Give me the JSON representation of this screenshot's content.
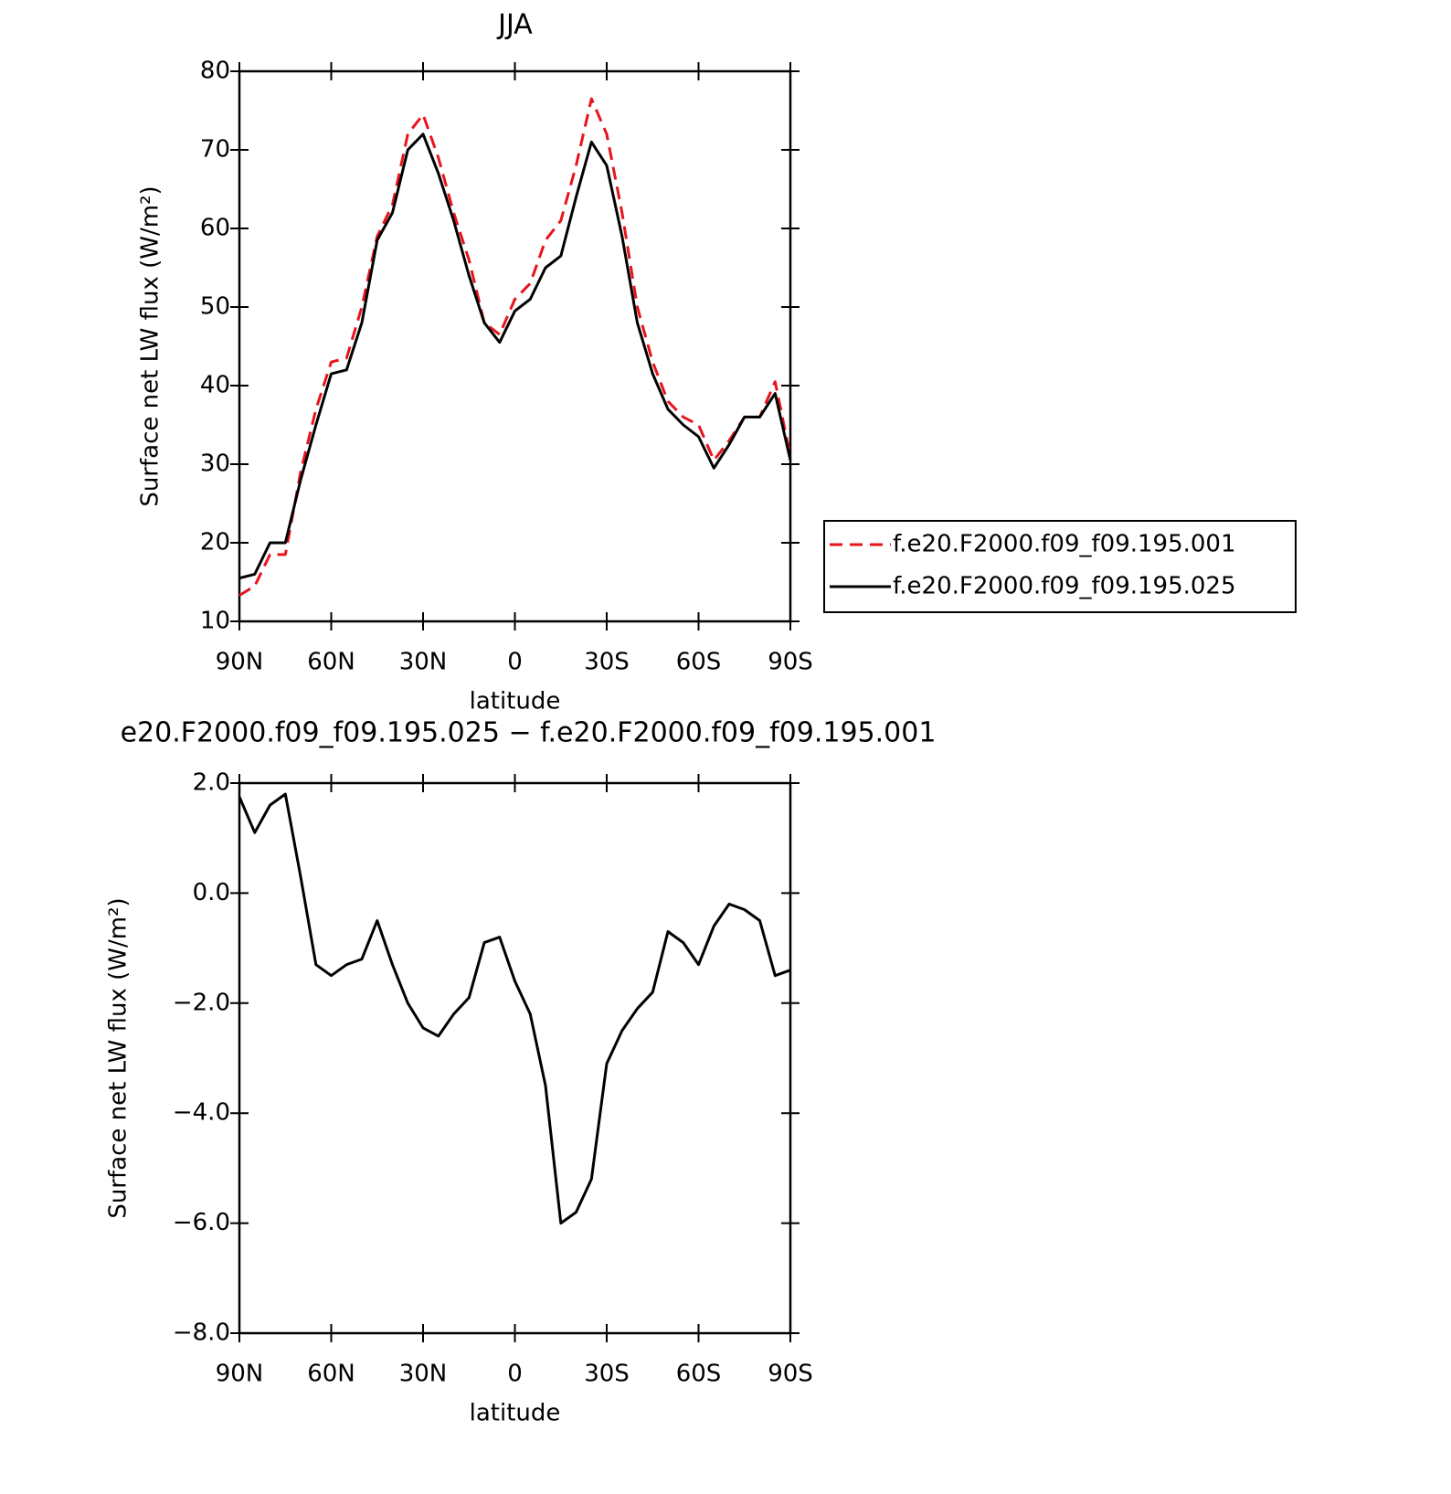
{
  "chart_data": [
    {
      "type": "line",
      "title": "JJA",
      "xlabel": "latitude",
      "ylabel": "Surface net LW flux (W/m²)",
      "x": [
        90,
        85,
        80,
        75,
        70,
        65,
        60,
        55,
        50,
        45,
        40,
        35,
        30,
        25,
        20,
        15,
        10,
        5,
        0,
        -5,
        -10,
        -15,
        -20,
        -25,
        -30,
        -35,
        -40,
        -45,
        -50,
        -55,
        -60,
        -65,
        -70,
        -75,
        -80,
        -85,
        -90
      ],
      "series": [
        {
          "name": "f.e20.F2000.f09_f09.195.001",
          "color": "#e8141c",
          "dash": true,
          "values": [
            13.3,
            14.5,
            18.5,
            18.5,
            29,
            37,
            43,
            43.5,
            50,
            59,
            63,
            72,
            74.5,
            69,
            62,
            56,
            48,
            46.5,
            51,
            53,
            58.5,
            61,
            68,
            76.5,
            72,
            62,
            50,
            43,
            38,
            36,
            35,
            30.5,
            33,
            36,
            36,
            40.5,
            31
          ]
        },
        {
          "name": "f.e20.F2000.f09_f09.195.025",
          "color": "#000000",
          "dash": false,
          "values": [
            15.5,
            16,
            20,
            20,
            28,
            35,
            41.5,
            42,
            48,
            58.5,
            62,
            70,
            72,
            67,
            61,
            54,
            48,
            45.5,
            49.5,
            51,
            55,
            56.5,
            64,
            71,
            68,
            59,
            48,
            41.5,
            37,
            35,
            33.5,
            29.5,
            32.5,
            36,
            36,
            39,
            30.5
          ]
        }
      ],
      "xlim": [
        90,
        -90
      ],
      "xticks": [
        {
          "value": 90,
          "label": "90N"
        },
        {
          "value": 60,
          "label": "60N"
        },
        {
          "value": 30,
          "label": "30N"
        },
        0,
        {
          "value": -30,
          "label": "30S"
        },
        {
          "value": -60,
          "label": "60S"
        },
        {
          "value": -90,
          "label": "90S"
        }
      ],
      "ylim": [
        10,
        80
      ],
      "yticks": [
        10,
        20,
        30,
        40,
        50,
        60,
        70,
        80
      ],
      "legend": "right"
    },
    {
      "type": "line",
      "title": "e20.F2000.f09_f09.195.025 − f.e20.F2000.f09_f09.195.001",
      "xlabel": "latitude",
      "ylabel": "Surface net LW flux (W/m²)",
      "x": [
        90,
        85,
        80,
        75,
        70,
        65,
        60,
        55,
        50,
        45,
        40,
        35,
        30,
        25,
        20,
        15,
        10,
        5,
        0,
        -5,
        -10,
        -15,
        -20,
        -25,
        -30,
        -35,
        -40,
        -45,
        -50,
        -55,
        -60,
        -65,
        -70,
        -75,
        -80,
        -85,
        -90
      ],
      "values": [
        1.75,
        1.1,
        1.6,
        1.8,
        0.3,
        -1.3,
        -1.5,
        -1.3,
        -1.2,
        -0.5,
        -1.3,
        -2.0,
        -2.45,
        -2.6,
        -2.2,
        -1.9,
        -0.9,
        -0.8,
        -1.6,
        -2.2,
        -3.5,
        -6.0,
        -5.8,
        -5.2,
        -3.1,
        -2.5,
        -2.1,
        -1.8,
        -0.7,
        -0.9,
        -1.3,
        -0.6,
        -0.2,
        -0.3,
        -0.5,
        -1.5,
        -1.4
      ],
      "color": "#000000",
      "xlim": [
        90,
        -90
      ],
      "xticks": [
        {
          "value": 90,
          "label": "90N"
        },
        {
          "value": 60,
          "label": "60N"
        },
        {
          "value": 30,
          "label": "30N"
        },
        0,
        {
          "value": -30,
          "label": "30S"
        },
        {
          "value": -60,
          "label": "60S"
        },
        {
          "value": -90,
          "label": "90S"
        }
      ],
      "ylim": [
        -8,
        2
      ],
      "yticks": [
        {
          "value": -8,
          "label": "−8.0"
        },
        {
          "value": -6,
          "label": "−6.0"
        },
        {
          "value": -4,
          "label": "−4.0"
        },
        {
          "value": -2,
          "label": "−2.0"
        },
        {
          "value": 0,
          "label": "0.0"
        },
        {
          "value": 2,
          "label": "2.0"
        }
      ]
    }
  ]
}
